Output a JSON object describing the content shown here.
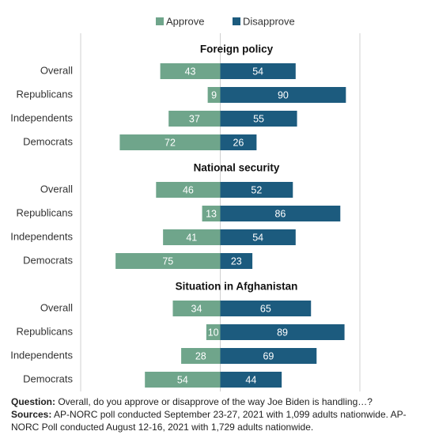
{
  "chart_data": [
    {
      "type": "diverging-bar",
      "title": "Foreign policy",
      "categories": [
        "Overall",
        "Republicans",
        "Independents",
        "Democrats"
      ],
      "series": [
        {
          "name": "Approve",
          "color": "#6fa58b",
          "values": [
            43,
            9,
            37,
            72
          ]
        },
        {
          "name": "Disapprove",
          "color": "#1c5b7e",
          "values": [
            54,
            90,
            55,
            26
          ]
        }
      ],
      "xlim": [
        -100,
        100
      ],
      "xticks": [
        -100,
        0,
        100
      ],
      "grid": true,
      "tick_labels": false
    },
    {
      "type": "diverging-bar",
      "title": "National security",
      "categories": [
        "Overall",
        "Republicans",
        "Independents",
        "Democrats"
      ],
      "series": [
        {
          "name": "Approve",
          "color": "#6fa58b",
          "values": [
            46,
            13,
            41,
            75
          ]
        },
        {
          "name": "Disapprove",
          "color": "#1c5b7e",
          "values": [
            52,
            86,
            54,
            23
          ]
        }
      ],
      "xlim": [
        -100,
        100
      ],
      "xticks": [
        -100,
        0,
        100
      ],
      "grid": true,
      "tick_labels": false
    },
    {
      "type": "diverging-bar",
      "title": "Situation in Afghanistan",
      "categories": [
        "Overall",
        "Republicans",
        "Independents",
        "Democrats"
      ],
      "series": [
        {
          "name": "Approve",
          "color": "#6fa58b",
          "values": [
            34,
            10,
            28,
            54
          ]
        },
        {
          "name": "Disapprove",
          "color": "#1c5b7e",
          "values": [
            65,
            89,
            69,
            44
          ]
        }
      ],
      "xlim": [
        -100,
        100
      ],
      "xticks": [
        -100,
        0,
        100
      ],
      "grid": true,
      "tick_labels": false
    }
  ],
  "notes": {
    "question_label": "Question:",
    "question": "Overall, do you approve or disapprove of the way Joe Biden is handling…?",
    "sources_label": "Sources:",
    "sources": "AP-NORC poll conducted September 23-27, 2021 with 1,099 adults nationwide. AP-NORC Poll conducted August 12-16, 2021 with 1,729 adults nationwide."
  }
}
